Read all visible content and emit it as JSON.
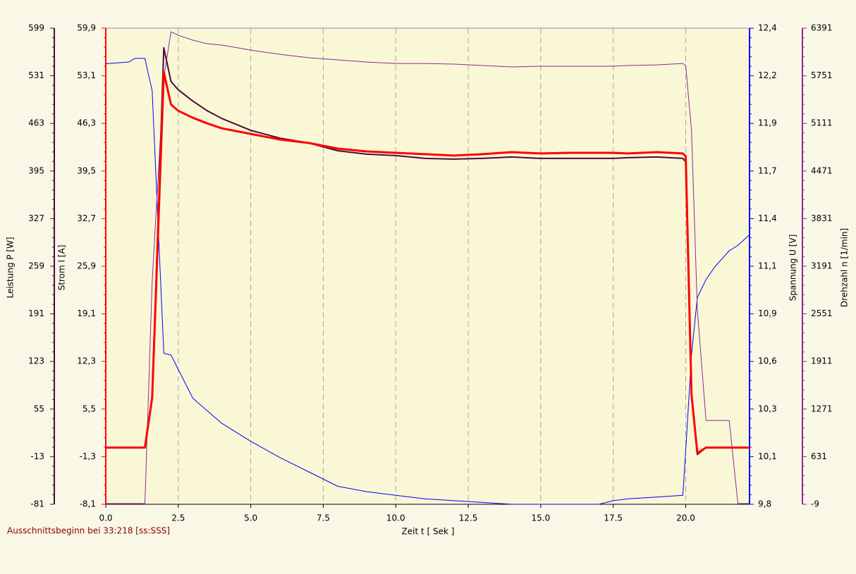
{
  "chart_data": {
    "type": "line",
    "x_label": "Zeit   t   [ Sek ]",
    "note": "Ausschnittsbeginn bei 33:218 [ss:SSS]",
    "xlim": [
      0,
      22.2
    ],
    "xticks": [
      {
        "value": 0,
        "label": "0.0"
      },
      {
        "value": 2.5,
        "label": "2.5"
      },
      {
        "value": 5,
        "label": "5.0"
      },
      {
        "value": 7.5,
        "label": "7.5"
      },
      {
        "value": 10,
        "label": "10.0"
      },
      {
        "value": 12.5,
        "label": "12.5"
      },
      {
        "value": 15,
        "label": "15.0"
      },
      {
        "value": 17.5,
        "label": "17.5"
      },
      {
        "value": 20,
        "label": "20.0"
      }
    ],
    "grid": true,
    "axes": [
      {
        "title": "Leistung   P   [W]",
        "color": "#4a0a3a",
        "side": "left",
        "ylim": [
          -81,
          599
        ],
        "yticks": [
          -81,
          -13,
          55,
          123,
          191,
          259,
          327,
          395,
          463,
          531,
          599
        ]
      },
      {
        "title": "Strom   I   [A]",
        "color": "#ff0000",
        "side": "left",
        "ylim": [
          -8.1,
          59.9
        ],
        "yticks": [
          {
            "value": -8.1,
            "label": "-8,1"
          },
          {
            "value": -1.3,
            "label": "-1,3"
          },
          {
            "value": 5.5,
            "label": "5,5"
          },
          {
            "value": 12.3,
            "label": "12,3"
          },
          {
            "value": 19.1,
            "label": "19,1"
          },
          {
            "value": 25.9,
            "label": "25,9"
          },
          {
            "value": 32.7,
            "label": "32,7"
          },
          {
            "value": 39.5,
            "label": "39,5"
          },
          {
            "value": 46.3,
            "label": "46,3"
          },
          {
            "value": 53.1,
            "label": "53,1"
          },
          {
            "value": 59.9,
            "label": "59,9"
          }
        ]
      },
      {
        "title": "Spannung   U   [V]",
        "color": "#0000ff",
        "side": "right",
        "ylim": [
          9.8,
          12.448
        ],
        "yticks": [
          {
            "value": 9.8,
            "label": "9,8"
          },
          {
            "value": 10.0648,
            "label": "10,1"
          },
          {
            "value": 10.3296,
            "label": "10,3"
          },
          {
            "value": 10.5944,
            "label": "10,6"
          },
          {
            "value": 10.8592,
            "label": "10,9"
          },
          {
            "value": 11.124,
            "label": "11,1"
          },
          {
            "value": 11.3888,
            "label": "11,4"
          },
          {
            "value": 11.6536,
            "label": "11,7"
          },
          {
            "value": 11.9184,
            "label": "11,9"
          },
          {
            "value": 12.1832,
            "label": "12,2"
          },
          {
            "value": 12.448,
            "label": "12,4"
          }
        ]
      },
      {
        "title": "Drehzahl   n   [1/min]",
        "color": "#8a2a9a",
        "side": "right",
        "ylim": [
          -9,
          6391
        ],
        "yticks": [
          -9,
          631,
          1271,
          1911,
          2551,
          3191,
          3831,
          4471,
          5111,
          5751,
          6391
        ]
      }
    ],
    "x": [
      0,
      0.8,
      1.0,
      1.35,
      1.6,
      2.0,
      2.25,
      2.5,
      3,
      3.5,
      4,
      5,
      6,
      7,
      8,
      9,
      10,
      11,
      12,
      13,
      14,
      15,
      16,
      17,
      17.5,
      18,
      19,
      19.9,
      20,
      20.2,
      20.4,
      20.7,
      21,
      21.5,
      21.8,
      22,
      22.2
    ],
    "series": [
      {
        "name": "U",
        "color": "#0000ff",
        "axis": 2,
        "width": 1,
        "values": [
          12.25,
          12.26,
          12.28,
          12.28,
          12.1,
          10.64,
          10.63,
          10.55,
          10.39,
          10.32,
          10.25,
          10.15,
          10.06,
          9.98,
          9.9,
          9.87,
          9.85,
          9.83,
          9.82,
          9.81,
          9.8,
          9.8,
          9.8,
          9.8,
          9.82,
          9.83,
          9.84,
          9.85,
          10.1,
          10.63,
          10.95,
          11.05,
          11.12,
          11.21,
          11.24,
          11.27,
          11.3
        ]
      },
      {
        "name": "n",
        "color": "#8a2a9a",
        "axis": 3,
        "width": 1,
        "values": [
          0,
          0,
          0,
          0,
          2983,
          5728,
          6343,
          6296,
          6230,
          6182,
          6164,
          6097,
          6040,
          5993,
          5965,
          5936,
          5917,
          5917,
          5908,
          5889,
          5870,
          5880,
          5880,
          5880,
          5880,
          5889,
          5898,
          5917,
          5889,
          5018,
          2604,
          1118,
          1118,
          1118,
          0,
          0,
          0
        ]
      },
      {
        "name": "P",
        "color": "#4a0a3a",
        "axis": 0,
        "width": 2,
        "values": [
          0,
          0,
          0,
          0,
          71,
          571,
          523,
          511,
          495,
          481,
          470,
          453,
          442,
          435,
          424,
          419,
          417,
          413,
          412,
          413,
          415,
          413,
          413,
          413,
          413,
          414,
          415,
          413,
          408,
          76,
          -10,
          0,
          0,
          0,
          0,
          0,
          0
        ]
      },
      {
        "name": "I",
        "color": "#ff0000",
        "axis": 1,
        "width": 3,
        "values": [
          0,
          0,
          0,
          0,
          7.1,
          53.6,
          49.0,
          48.1,
          47.1,
          46.3,
          45.6,
          44.8,
          44.0,
          43.5,
          42.7,
          42.3,
          42.1,
          41.9,
          41.7,
          41.9,
          42.2,
          42.0,
          42.1,
          42.1,
          42.1,
          42.0,
          42.2,
          42.0,
          41.6,
          7.6,
          -0.8,
          0,
          0,
          0,
          0,
          0,
          0
        ]
      }
    ]
  }
}
